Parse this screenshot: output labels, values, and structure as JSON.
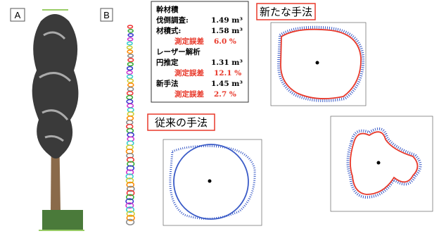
{
  "panels": {
    "A": {
      "label": "A"
    },
    "B": {
      "label": "B"
    }
  },
  "volume_box": {
    "title": "幹材積",
    "lines": [
      {
        "label": "伐倒調査:",
        "value": "1.49 m³"
      },
      {
        "label": "材積式:",
        "value": "1.58 m³"
      },
      {
        "label": "測定誤差",
        "value": "6.0 %"
      },
      {
        "label": "レーザー解析",
        "value": null
      },
      {
        "label": "円推定",
        "value": "1.31 m³"
      },
      {
        "label": "測定誤差",
        "value": "12.1 %"
      },
      {
        "label": "新手法",
        "value": "1.45 m³"
      },
      {
        "label": "測定誤差",
        "value": "2.7 %"
      }
    ]
  },
  "new_method": {
    "title": "新たな手法"
  },
  "old_method": {
    "title": "従来の手法"
  }
}
